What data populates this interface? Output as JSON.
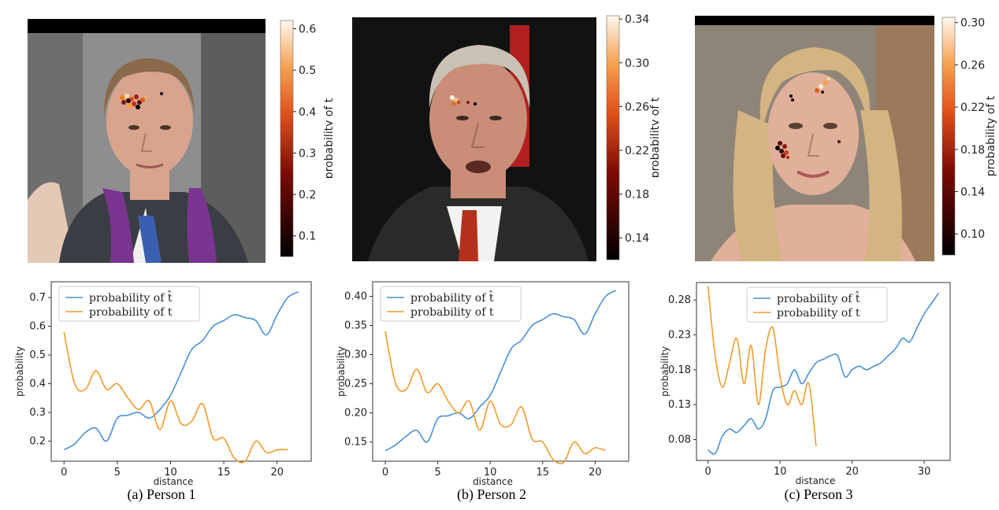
{
  "colors": {
    "blue": "#4a90d9",
    "orange": "#f39a2e",
    "frame": "#555555"
  },
  "panels": [
    {
      "caption": "(a) Person 1",
      "colorbar": {
        "label": "probability of t",
        "ticks": [
          "0.1",
          "0.2",
          "0.3",
          "0.4",
          "0.5",
          "0.6"
        ],
        "min": 0.05,
        "max": 0.62
      },
      "photo": {
        "icon": "portrait-man-purple-scarf",
        "bg": "#8a8a8a",
        "suit": "#3a3d44",
        "scarf": "#7a3590",
        "skin": "#d8a48e",
        "hair": "#8a6a4a"
      },
      "chart_data": {
        "type": "line",
        "xlabel": "distance",
        "ylabel": "probability",
        "xlim": [
          -1.2,
          23.2
        ],
        "ylim": [
          0.13,
          0.755
        ],
        "xticks": [
          0,
          5,
          10,
          15,
          20
        ],
        "yticks": [
          0.2,
          0.3,
          0.4,
          0.5,
          0.6,
          0.7
        ],
        "ytick_labels": [
          "0.2",
          "0.3",
          "0.4",
          "0.5",
          "0.6",
          "0.7"
        ],
        "legend_position": "top-left",
        "series": [
          {
            "name": "probability of t̂",
            "color": "blue",
            "x": [
              0,
              1,
              2,
              3,
              4,
              5,
              6,
              7,
              8,
              9,
              10,
              11,
              12,
              13,
              14,
              15,
              16,
              17,
              18,
              19,
              20,
              21,
              22
            ],
            "y": [
              0.17,
              0.19,
              0.23,
              0.245,
              0.2,
              0.28,
              0.29,
              0.3,
              0.28,
              0.31,
              0.36,
              0.44,
              0.52,
              0.55,
              0.6,
              0.62,
              0.64,
              0.63,
              0.62,
              0.57,
              0.64,
              0.7,
              0.72
            ]
          },
          {
            "name": "probability of t",
            "color": "orange",
            "x": [
              0,
              1,
              2,
              3,
              4,
              5,
              6,
              7,
              8,
              9,
              10,
              11,
              12,
              13,
              14,
              15,
              16,
              17,
              18,
              19,
              20,
              21
            ],
            "y": [
              0.58,
              0.4,
              0.38,
              0.445,
              0.38,
              0.4,
              0.35,
              0.31,
              0.34,
              0.24,
              0.34,
              0.26,
              0.27,
              0.33,
              0.21,
              0.21,
              0.14,
              0.13,
              0.2,
              0.16,
              0.17,
              0.17
            ]
          }
        ]
      }
    },
    {
      "caption": "(b) Person 2",
      "colorbar": {
        "label": "probability of t",
        "ticks": [
          "0.14",
          "0.18",
          "0.22",
          "0.26",
          "0.30",
          "0.34"
        ],
        "min": 0.12,
        "max": 0.343
      },
      "photo": {
        "icon": "portrait-older-man-suit",
        "bg": "#101010",
        "suit": "#2a2a2a",
        "scarf": "#b5301c",
        "skin": "#c98d78",
        "hair": "#c9c1b3"
      },
      "chart_data": {
        "type": "line",
        "xlabel": "distance",
        "ylabel": "probability",
        "xlim": [
          -1.2,
          23.2
        ],
        "ylim": [
          0.117,
          0.425
        ],
        "xticks": [
          0,
          5,
          10,
          15,
          20
        ],
        "yticks": [
          0.15,
          0.2,
          0.25,
          0.3,
          0.35,
          0.4
        ],
        "ytick_labels": [
          "0.15",
          "0.20",
          "0.25",
          "0.30",
          "0.35",
          "0.40"
        ],
        "legend_position": "top-left",
        "series": [
          {
            "name": "probability of t̂",
            "color": "blue",
            "x": [
              0,
              1,
              2,
              3,
              4,
              5,
              6,
              7,
              8,
              9,
              10,
              11,
              12,
              13,
              14,
              15,
              16,
              17,
              18,
              19,
              20,
              21,
              22
            ],
            "y": [
              0.135,
              0.145,
              0.16,
              0.17,
              0.15,
              0.19,
              0.195,
              0.2,
              0.19,
              0.21,
              0.23,
              0.27,
              0.31,
              0.325,
              0.35,
              0.36,
              0.37,
              0.365,
              0.36,
              0.335,
              0.37,
              0.4,
              0.41
            ]
          },
          {
            "name": "probability of t",
            "color": "orange",
            "x": [
              0,
              1,
              2,
              3,
              4,
              5,
              6,
              7,
              8,
              9,
              10,
              11,
              12,
              13,
              14,
              15,
              16,
              17,
              18,
              19,
              20,
              21
            ],
            "y": [
              0.34,
              0.25,
              0.24,
              0.275,
              0.235,
              0.25,
              0.22,
              0.2,
              0.22,
              0.17,
              0.22,
              0.18,
              0.18,
              0.21,
              0.155,
              0.15,
              0.12,
              0.115,
              0.15,
              0.13,
              0.14,
              0.135
            ]
          }
        ]
      }
    },
    {
      "caption": "(c) Person 3",
      "colorbar": {
        "label": "probability of t",
        "ticks": [
          "0.10",
          "0.14",
          "0.18",
          "0.22",
          "0.26",
          "0.30"
        ],
        "min": 0.08,
        "max": 0.305
      },
      "photo": {
        "icon": "portrait-blonde-woman",
        "bg": "#8f8478",
        "suit": "#d8b59a",
        "scarf": "#2a2a2a",
        "skin": "#e0b09a",
        "hair": "#d4b483"
      },
      "chart_data": {
        "type": "line",
        "xlabel": "distance",
        "ylabel": "probability",
        "xlim": [
          -1.6,
          33.6
        ],
        "ylim": [
          0.05,
          0.305
        ],
        "xticks": [
          0,
          10,
          20,
          30
        ],
        "yticks": [
          0.08,
          0.13,
          0.18,
          0.23,
          0.28
        ],
        "ytick_labels": [
          "0.08",
          "0.13",
          "0.18",
          "0.23",
          "0.28"
        ],
        "legend_position": "top-center",
        "series": [
          {
            "name": "probability of t̂",
            "color": "blue",
            "x": [
              0,
              1,
              2,
              3,
              4,
              5,
              6,
              7,
              8,
              9,
              10,
              11,
              12,
              13,
              14,
              15,
              16,
              17,
              18,
              19,
              20,
              21,
              22,
              23,
              24,
              25,
              26,
              27,
              28,
              29,
              30,
              31,
              32
            ],
            "y": [
              0.065,
              0.06,
              0.085,
              0.095,
              0.09,
              0.1,
              0.11,
              0.095,
              0.11,
              0.15,
              0.155,
              0.16,
              0.18,
              0.16,
              0.175,
              0.19,
              0.195,
              0.2,
              0.2,
              0.17,
              0.18,
              0.185,
              0.18,
              0.185,
              0.19,
              0.2,
              0.21,
              0.225,
              0.22,
              0.24,
              0.26,
              0.275,
              0.29
            ]
          },
          {
            "name": "probability of t",
            "color": "orange",
            "x": [
              0,
              1,
              2,
              3,
              4,
              5,
              6,
              7,
              8,
              9,
              10,
              11,
              12,
              13,
              14,
              15
            ],
            "y": [
              0.3,
              0.2,
              0.155,
              0.19,
              0.225,
              0.16,
              0.215,
              0.13,
              0.21,
              0.24,
              0.17,
              0.13,
              0.15,
              0.13,
              0.16,
              0.07
            ]
          }
        ]
      }
    }
  ]
}
